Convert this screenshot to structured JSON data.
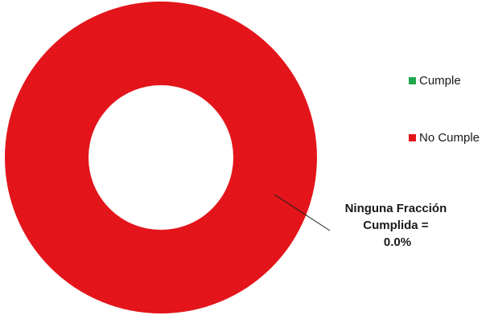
{
  "chart_data": {
    "type": "pie",
    "subtype": "donut",
    "categories": [
      "Cumple",
      "No Cumple"
    ],
    "values": [
      0,
      100
    ],
    "unit": "%",
    "colors": {
      "Cumple": "#1fa84f",
      "No Cumple": "#e3151b"
    },
    "legend": {
      "position": "right",
      "entries": [
        "Cumple",
        "No Cumple"
      ]
    },
    "annotation": {
      "lines": [
        "Ninguna Fracción",
        "Cumplida =",
        "0.0%"
      ]
    }
  }
}
